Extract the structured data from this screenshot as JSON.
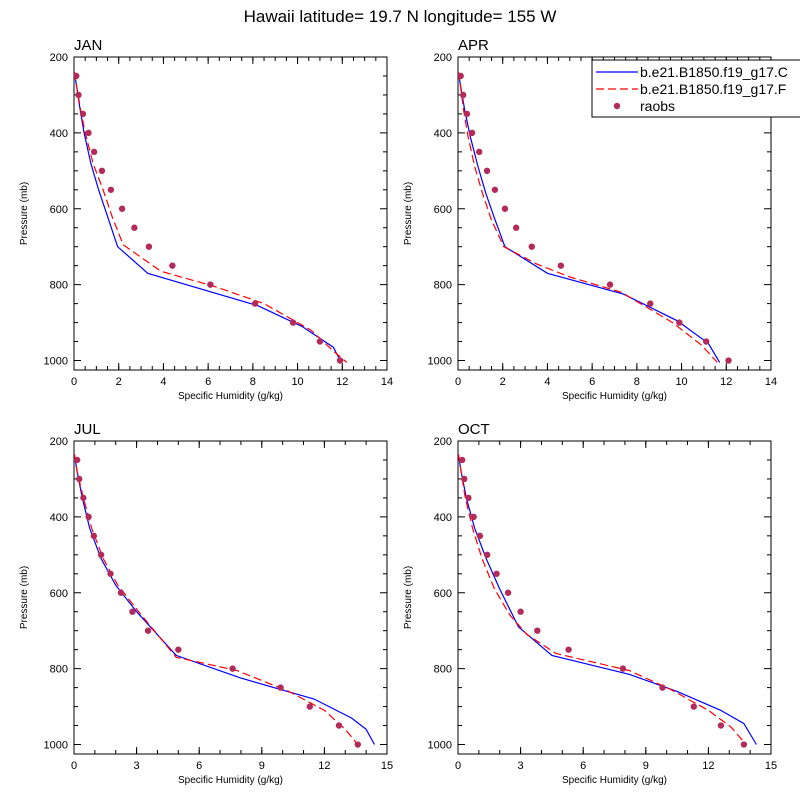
{
  "figure_title": "Hawaii  latitude= 19.7 N longitude= 155 W",
  "colors": {
    "solid": "#0000ff",
    "dashed": "#ff0000",
    "dots": "#b22b5b"
  },
  "legend": [
    {
      "label": "b.e21.B1850.f19_g17.C",
      "style": "solid"
    },
    {
      "label": "b.e21.B1850.f19_g17.F",
      "style": "dashed"
    },
    {
      "label": "raobs",
      "style": "dots"
    }
  ],
  "chart_data": [
    {
      "type": "line",
      "title": "JAN",
      "xlabel": "Specific Humidity (g/kg)",
      "ylabel": "Pressure (mb)",
      "xlim": [
        0,
        14
      ],
      "ylim": [
        1025,
        200
      ],
      "xticks": [
        "0",
        "2",
        "4",
        "6",
        "8",
        "10",
        "12",
        "14"
      ],
      "yticks": [
        "200",
        "400",
        "600",
        "800",
        "1000"
      ],
      "series": [
        {
          "name": "b.e21.B1850.f19_g17.C",
          "style": "solid",
          "points": [
            [
              0.02,
              240
            ],
            [
              0.1,
              270
            ],
            [
              0.25,
              330
            ],
            [
              0.45,
              400
            ],
            [
              0.75,
              480
            ],
            [
              1.1,
              550
            ],
            [
              1.5,
              620
            ],
            [
              1.95,
              700
            ],
            [
              3.3,
              770
            ],
            [
              8.2,
              855
            ],
            [
              10.2,
              910
            ],
            [
              11.6,
              965
            ],
            [
              11.95,
              1005
            ]
          ]
        },
        {
          "name": "b.e21.B1850.f19_g17.F",
          "style": "dashed",
          "points": [
            [
              0.02,
              240
            ],
            [
              0.1,
              270
            ],
            [
              0.3,
              340
            ],
            [
              0.5,
              400
            ],
            [
              0.85,
              480
            ],
            [
              1.3,
              550
            ],
            [
              1.7,
              620
            ],
            [
              2.2,
              695
            ],
            [
              3.9,
              765
            ],
            [
              6.3,
              805
            ],
            [
              8.5,
              850
            ],
            [
              10.6,
              920
            ],
            [
              11.6,
              975
            ],
            [
              12.2,
              1005
            ]
          ]
        },
        {
          "name": "raobs",
          "style": "dots",
          "points": [
            [
              0.1,
              250
            ],
            [
              0.2,
              300
            ],
            [
              0.4,
              350
            ],
            [
              0.65,
              400
            ],
            [
              0.9,
              450
            ],
            [
              1.25,
              500
            ],
            [
              1.65,
              550
            ],
            [
              2.15,
              600
            ],
            [
              2.7,
              650
            ],
            [
              3.35,
              700
            ],
            [
              4.4,
              750
            ],
            [
              6.1,
              800
            ],
            [
              8.1,
              850
            ],
            [
              9.8,
              900
            ],
            [
              11.0,
              950
            ],
            [
              11.9,
              1000
            ]
          ]
        }
      ]
    },
    {
      "type": "line",
      "title": "APR",
      "xlabel": "Specific Humidity (g/kg)",
      "ylabel": "Pressure (mb)",
      "xlim": [
        0,
        14
      ],
      "ylim": [
        1025,
        200
      ],
      "xticks": [
        "0",
        "2",
        "4",
        "6",
        "8",
        "10",
        "12",
        "14"
      ],
      "yticks": [
        "200",
        "400",
        "600",
        "800",
        "1000"
      ],
      "series": [
        {
          "name": "b.e21.B1850.f19_g17.C",
          "style": "solid",
          "points": [
            [
              0.02,
              240
            ],
            [
              0.1,
              270
            ],
            [
              0.3,
              340
            ],
            [
              0.55,
              410
            ],
            [
              0.9,
              490
            ],
            [
              1.25,
              560
            ],
            [
              1.6,
              620
            ],
            [
              2.1,
              700
            ],
            [
              4.0,
              770
            ],
            [
              7.4,
              825
            ],
            [
              9.8,
              895
            ],
            [
              11.2,
              955
            ],
            [
              11.7,
              1005
            ]
          ]
        },
        {
          "name": "b.e21.B1850.f19_g17.F",
          "style": "dashed",
          "points": [
            [
              0.02,
              240
            ],
            [
              0.1,
              270
            ],
            [
              0.25,
              340
            ],
            [
              0.45,
              410
            ],
            [
              0.75,
              490
            ],
            [
              1.1,
              560
            ],
            [
              1.5,
              630
            ],
            [
              2.05,
              700
            ],
            [
              3.5,
              745
            ],
            [
              5.0,
              780
            ],
            [
              7.3,
              820
            ],
            [
              9.6,
              900
            ],
            [
              10.9,
              960
            ],
            [
              11.6,
              1005
            ]
          ]
        },
        {
          "name": "raobs",
          "style": "dots",
          "points": [
            [
              0.12,
              250
            ],
            [
              0.23,
              300
            ],
            [
              0.4,
              350
            ],
            [
              0.63,
              400
            ],
            [
              0.95,
              450
            ],
            [
              1.3,
              500
            ],
            [
              1.65,
              550
            ],
            [
              2.1,
              600
            ],
            [
              2.6,
              650
            ],
            [
              3.3,
              700
            ],
            [
              4.6,
              750
            ],
            [
              6.8,
              800
            ],
            [
              8.6,
              850
            ],
            [
              9.9,
              900
            ],
            [
              11.1,
              950
            ],
            [
              12.1,
              1000
            ]
          ]
        }
      ]
    },
    {
      "type": "line",
      "title": "JUL",
      "xlabel": "Specific Humidity (g/kg)",
      "ylabel": "Pressure (mb)",
      "xlim": [
        0,
        15
      ],
      "ylim": [
        1025,
        200
      ],
      "xticks": [
        "0",
        "3",
        "6",
        "9",
        "12",
        "15"
      ],
      "yticks": [
        "200",
        "400",
        "600",
        "800",
        "1000"
      ],
      "series": [
        {
          "name": "b.e21.B1850.f19_g17.C",
          "style": "solid",
          "points": [
            [
              0.02,
              235
            ],
            [
              0.15,
              280
            ],
            [
              0.4,
              350
            ],
            [
              0.75,
              430
            ],
            [
              1.3,
              510
            ],
            [
              2.0,
              580
            ],
            [
              3.0,
              650
            ],
            [
              4.9,
              765
            ],
            [
              8.0,
              825
            ],
            [
              11.5,
              880
            ],
            [
              13.3,
              930
            ],
            [
              14.0,
              960
            ],
            [
              14.4,
              1000
            ]
          ]
        },
        {
          "name": "b.e21.B1850.f19_g17.F",
          "style": "dashed",
          "points": [
            [
              0.02,
              235
            ],
            [
              0.15,
              280
            ],
            [
              0.45,
              350
            ],
            [
              0.85,
              430
            ],
            [
              1.4,
              510
            ],
            [
              2.1,
              580
            ],
            [
              3.1,
              650
            ],
            [
              4.9,
              770
            ],
            [
              7.8,
              805
            ],
            [
              10.3,
              860
            ],
            [
              12.0,
              910
            ],
            [
              13.0,
              960
            ],
            [
              13.6,
              1000
            ]
          ]
        },
        {
          "name": "raobs",
          "style": "dots",
          "points": [
            [
              0.15,
              250
            ],
            [
              0.25,
              300
            ],
            [
              0.45,
              350
            ],
            [
              0.7,
              400
            ],
            [
              0.95,
              450
            ],
            [
              1.3,
              500
            ],
            [
              1.75,
              550
            ],
            [
              2.25,
              600
            ],
            [
              2.8,
              650
            ],
            [
              3.55,
              700
            ],
            [
              5.0,
              750
            ],
            [
              7.6,
              800
            ],
            [
              9.9,
              850
            ],
            [
              11.3,
              900
            ],
            [
              12.7,
              950
            ],
            [
              13.6,
              1000
            ]
          ]
        }
      ]
    },
    {
      "type": "line",
      "title": "OCT",
      "xlabel": "Specific Humidity (g/kg)",
      "ylabel": "Pressure (mb)",
      "xlim": [
        0,
        15
      ],
      "ylim": [
        1025,
        200
      ],
      "xticks": [
        "0",
        "3",
        "6",
        "9",
        "12",
        "15"
      ],
      "yticks": [
        "200",
        "400",
        "600",
        "800",
        "1000"
      ],
      "series": [
        {
          "name": "b.e21.B1850.f19_g17.C",
          "style": "solid",
          "points": [
            [
              0.02,
              235
            ],
            [
              0.15,
              280
            ],
            [
              0.4,
              350
            ],
            [
              0.8,
              430
            ],
            [
              1.35,
              510
            ],
            [
              2.0,
              590
            ],
            [
              2.9,
              690
            ],
            [
              4.5,
              765
            ],
            [
              8.2,
              815
            ],
            [
              10.5,
              860
            ],
            [
              12.6,
              910
            ],
            [
              13.7,
              945
            ],
            [
              14.3,
              1000
            ]
          ]
        },
        {
          "name": "b.e21.B1850.f19_g17.F",
          "style": "dashed",
          "points": [
            [
              0.02,
              235
            ],
            [
              0.15,
              280
            ],
            [
              0.35,
              350
            ],
            [
              0.7,
              430
            ],
            [
              1.15,
              510
            ],
            [
              1.75,
              590
            ],
            [
              2.5,
              660
            ],
            [
              3.3,
              710
            ],
            [
              4.7,
              760
            ],
            [
              8.2,
              805
            ],
            [
              10.2,
              855
            ],
            [
              12.0,
              910
            ],
            [
              13.1,
              955
            ],
            [
              13.8,
              1000
            ]
          ]
        },
        {
          "name": "raobs",
          "style": "dots",
          "points": [
            [
              0.2,
              250
            ],
            [
              0.3,
              300
            ],
            [
              0.5,
              350
            ],
            [
              0.75,
              400
            ],
            [
              1.05,
              450
            ],
            [
              1.4,
              500
            ],
            [
              1.85,
              550
            ],
            [
              2.4,
              600
            ],
            [
              3.0,
              650
            ],
            [
              3.8,
              700
            ],
            [
              5.3,
              750
            ],
            [
              7.9,
              800
            ],
            [
              9.8,
              850
            ],
            [
              11.3,
              900
            ],
            [
              12.6,
              950
            ],
            [
              13.7,
              1000
            ]
          ]
        }
      ]
    }
  ]
}
